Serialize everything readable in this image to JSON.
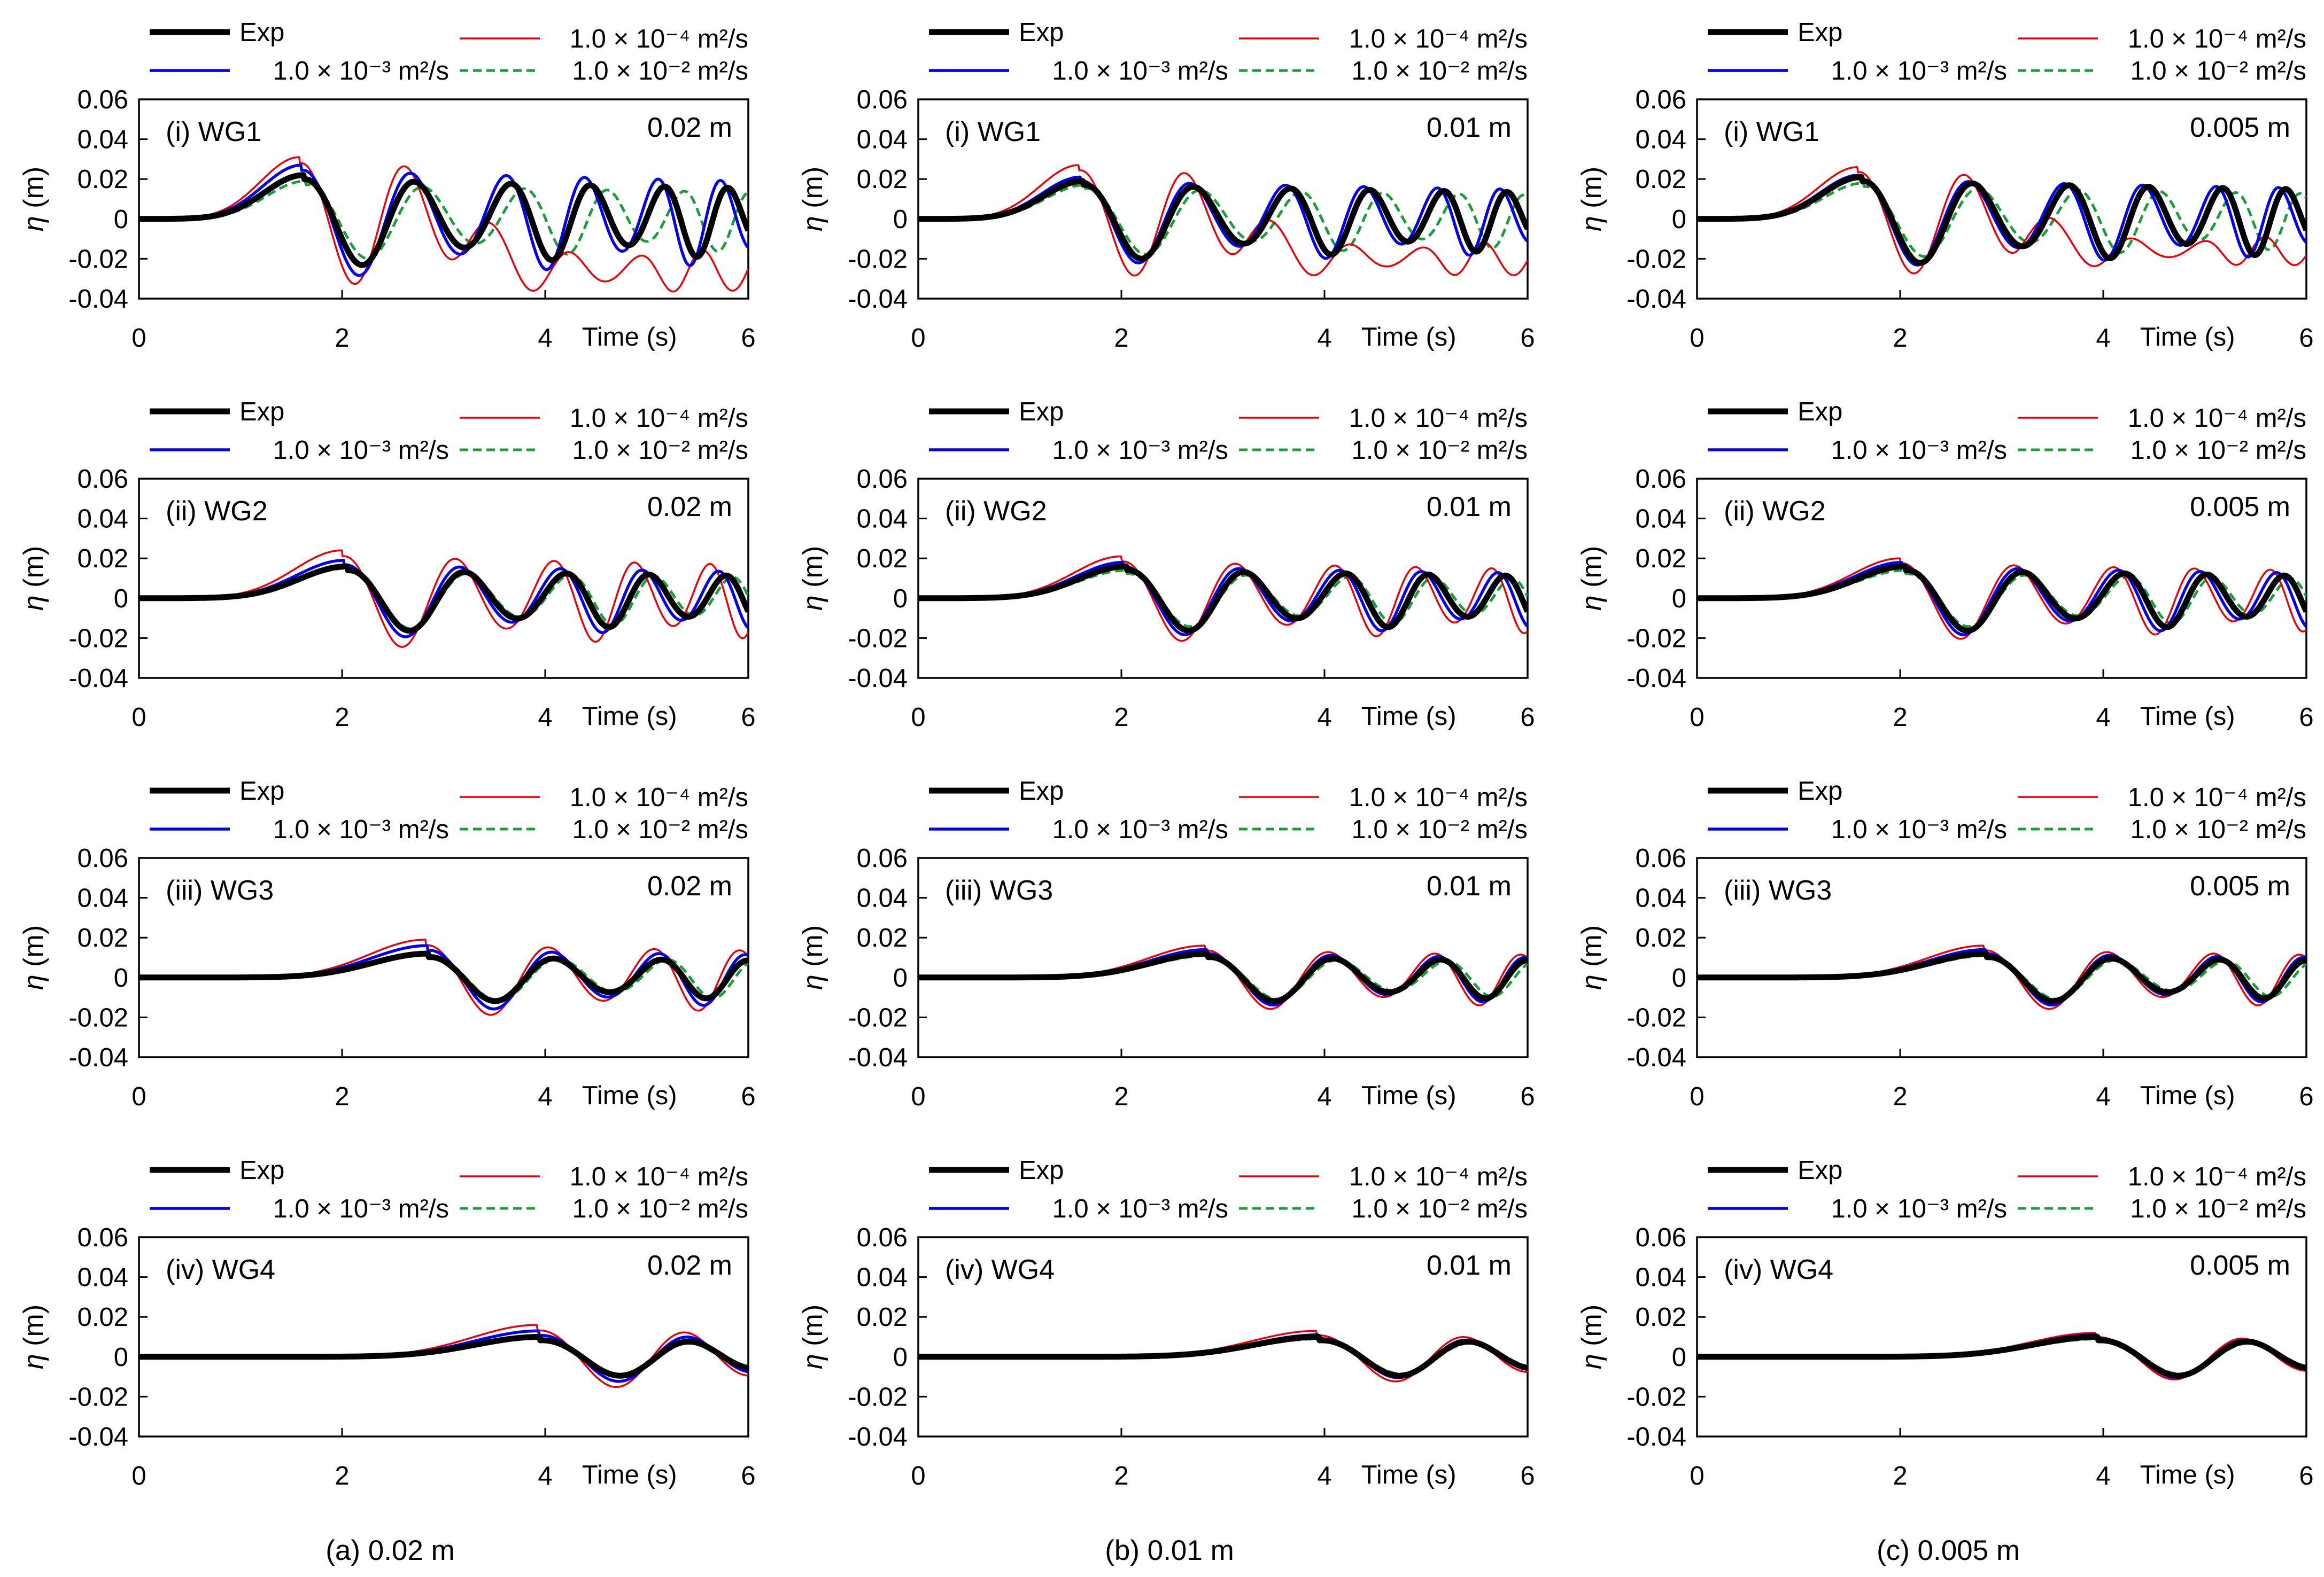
{
  "figure": {
    "column_captions": [
      "(a) 0.02 m",
      "(b) 0.01 m",
      "(c) 0.005 m"
    ],
    "row_titles": [
      "(i) WG1",
      "(ii) WG2",
      "(iii) WG3",
      "(iv) WG4"
    ],
    "corner_labels": [
      "0.02 m",
      "0.01 m",
      "0.005 m"
    ],
    "legend_labels": {
      "exp": "Exp",
      "nu1e4": "1.0 × 10⁻⁴ m²/s",
      "nu1e3": "1.0 × 10⁻³ m²/s",
      "nu1e2": "1.0 × 10⁻² m²/s"
    },
    "xlabel": "Time (s)",
    "ylabel_symbol": "η",
    "ylabel_unit": " (m)",
    "xticks": [
      "0",
      "2",
      "4",
      "6"
    ],
    "yticks": [
      "-0.04",
      "-0.02",
      "0",
      "0.02",
      "0.04",
      "0.06"
    ]
  },
  "colors": {
    "exp": "#000000",
    "nu1e4": "#e8000b",
    "nu1e3": "#0000ee",
    "nu1e2": "#1a9e3a"
  },
  "chart_data": [
    {
      "type": "line",
      "title": "(i) WG1",
      "corner_label": "0.02 m",
      "xlabel": "Time (s)",
      "ylabel": "η (m)",
      "xlim": [
        0,
        6
      ],
      "ylim": [
        -0.04,
        0.06
      ],
      "series": [
        {
          "name": "Exp",
          "gauge": 1,
          "t1": 1.62,
          "amp": 0.022,
          "T": 1.22,
          "tail": 0
        },
        {
          "name": "1.0 × 10⁻⁴ m²/s",
          "gauge": 1,
          "t1": 1.58,
          "amp": 0.031,
          "T": 1.15,
          "tail": -0.026
        },
        {
          "name": "1.0 × 10⁻³ m²/s",
          "gauge": 1,
          "t1": 1.6,
          "amp": 0.027,
          "T": 1.2,
          "tail": 0
        },
        {
          "name": "1.0 × 10⁻² m²/s",
          "gauge": 1,
          "t1": 1.64,
          "amp": 0.019,
          "T": 1.3,
          "tail": 0
        }
      ]
    },
    {
      "type": "line",
      "title": "(i) WG1",
      "corner_label": "0.01 m",
      "xlabel": "Time (s)",
      "ylabel": "η (m)",
      "xlim": [
        0,
        6
      ],
      "ylim": [
        -0.04,
        0.06
      ],
      "series": [
        {
          "name": "Exp",
          "gauge": 1,
          "t1": 1.62,
          "amp": 0.019,
          "T": 1.22,
          "tail": 0
        },
        {
          "name": "1.0 × 10⁻⁴ m²/s",
          "gauge": 1,
          "t1": 1.58,
          "amp": 0.027,
          "T": 1.16,
          "tail": -0.02
        },
        {
          "name": "1.0 × 10⁻³ m²/s",
          "gauge": 1,
          "t1": 1.6,
          "amp": 0.021,
          "T": 1.2,
          "tail": 0
        },
        {
          "name": "1.0 × 10⁻² m²/s",
          "gauge": 1,
          "t1": 1.64,
          "amp": 0.017,
          "T": 1.28,
          "tail": 0
        }
      ]
    },
    {
      "type": "line",
      "title": "(i) WG1",
      "corner_label": "0.005 m",
      "xlabel": "Time (s)",
      "ylabel": "η (m)",
      "xlim": [
        0,
        6
      ],
      "ylim": [
        -0.04,
        0.06
      ],
      "series": [
        {
          "name": "Exp",
          "gauge": 1,
          "t1": 1.62,
          "amp": 0.021,
          "T": 1.22,
          "tail": 0
        },
        {
          "name": "1.0 × 10⁻⁴ m²/s",
          "gauge": 1,
          "t1": 1.58,
          "amp": 0.026,
          "T": 1.17,
          "tail": -0.016
        },
        {
          "name": "1.0 × 10⁻³ m²/s",
          "gauge": 1,
          "t1": 1.6,
          "amp": 0.022,
          "T": 1.2,
          "tail": 0
        },
        {
          "name": "1.0 × 10⁻² m²/s",
          "gauge": 1,
          "t1": 1.64,
          "amp": 0.018,
          "T": 1.27,
          "tail": 0
        }
      ]
    },
    {
      "type": "line",
      "title": "(ii) WG2",
      "corner_label": "0.02 m",
      "xlabel": "Time (s)",
      "ylabel": "η (m)",
      "xlim": [
        0,
        6
      ],
      "ylim": [
        -0.04,
        0.06
      ],
      "series": [
        {
          "name": "Exp",
          "gauge": 2,
          "t1": 2.05,
          "amp": 0.016,
          "T": 1.3,
          "tail": 0
        },
        {
          "name": "1.0 × 10⁻⁴ m²/s",
          "gauge": 2,
          "t1": 2.0,
          "amp": 0.024,
          "T": 1.25,
          "tail": 0
        },
        {
          "name": "1.0 × 10⁻³ m²/s",
          "gauge": 2,
          "t1": 2.02,
          "amp": 0.019,
          "T": 1.28,
          "tail": 0
        },
        {
          "name": "1.0 × 10⁻² m²/s",
          "gauge": 2,
          "t1": 2.05,
          "amp": 0.015,
          "T": 1.33,
          "tail": 0
        }
      ]
    },
    {
      "type": "line",
      "title": "(ii) WG2",
      "corner_label": "0.01 m",
      "xlabel": "Time (s)",
      "ylabel": "η (m)",
      "xlim": [
        0,
        6
      ],
      "ylim": [
        -0.04,
        0.06
      ],
      "series": [
        {
          "name": "Exp",
          "gauge": 2,
          "t1": 2.05,
          "amp": 0.016,
          "T": 1.3,
          "tail": 0
        },
        {
          "name": "1.0 × 10⁻⁴ m²/s",
          "gauge": 2,
          "t1": 2.0,
          "amp": 0.021,
          "T": 1.26,
          "tail": 0
        },
        {
          "name": "1.0 × 10⁻³ m²/s",
          "gauge": 2,
          "t1": 2.02,
          "amp": 0.018,
          "T": 1.28,
          "tail": 0
        },
        {
          "name": "1.0 × 10⁻² m²/s",
          "gauge": 2,
          "t1": 2.05,
          "amp": 0.014,
          "T": 1.33,
          "tail": 0
        }
      ]
    },
    {
      "type": "line",
      "title": "(ii) WG2",
      "corner_label": "0.005 m",
      "xlabel": "Time (s)",
      "ylabel": "η (m)",
      "xlim": [
        0,
        6
      ],
      "ylim": [
        -0.04,
        0.06
      ],
      "series": [
        {
          "name": "Exp",
          "gauge": 2,
          "t1": 2.05,
          "amp": 0.016,
          "T": 1.3,
          "tail": 0
        },
        {
          "name": "1.0 × 10⁻⁴ m²/s",
          "gauge": 2,
          "t1": 2.0,
          "amp": 0.02,
          "T": 1.26,
          "tail": 0
        },
        {
          "name": "1.0 × 10⁻³ m²/s",
          "gauge": 2,
          "t1": 2.02,
          "amp": 0.018,
          "T": 1.28,
          "tail": 0
        },
        {
          "name": "1.0 × 10⁻² m²/s",
          "gauge": 2,
          "t1": 2.05,
          "amp": 0.014,
          "T": 1.33,
          "tail": 0
        }
      ]
    },
    {
      "type": "line",
      "title": "(iii) WG3",
      "corner_label": "0.02 m",
      "xlabel": "Time (s)",
      "ylabel": "η (m)",
      "xlim": [
        0,
        6
      ],
      "ylim": [
        -0.04,
        0.06
      ],
      "series": [
        {
          "name": "Exp",
          "gauge": 3,
          "t1": 2.85,
          "amp": 0.012,
          "T": 1.4,
          "tail": 0
        },
        {
          "name": "1.0 × 10⁻⁴ m²/s",
          "gauge": 3,
          "t1": 2.82,
          "amp": 0.019,
          "T": 1.37,
          "tail": 0
        },
        {
          "name": "1.0 × 10⁻³ m²/s",
          "gauge": 3,
          "t1": 2.84,
          "amp": 0.016,
          "T": 1.39,
          "tail": 0
        },
        {
          "name": "1.0 × 10⁻² m²/s",
          "gauge": 3,
          "t1": 2.87,
          "amp": 0.012,
          "T": 1.43,
          "tail": 0
        }
      ]
    },
    {
      "type": "line",
      "title": "(iii) WG3",
      "corner_label": "0.01 m",
      "xlabel": "Time (s)",
      "ylabel": "η (m)",
      "xlim": [
        0,
        6
      ],
      "ylim": [
        -0.04,
        0.06
      ],
      "series": [
        {
          "name": "Exp",
          "gauge": 3,
          "t1": 2.85,
          "amp": 0.012,
          "T": 1.4,
          "tail": 0
        },
        {
          "name": "1.0 × 10⁻⁴ m²/s",
          "gauge": 3,
          "t1": 2.82,
          "amp": 0.016,
          "T": 1.38,
          "tail": 0
        },
        {
          "name": "1.0 × 10⁻³ m²/s",
          "gauge": 3,
          "t1": 2.84,
          "amp": 0.014,
          "T": 1.39,
          "tail": 0
        },
        {
          "name": "1.0 × 10⁻² m²/s",
          "gauge": 3,
          "t1": 2.87,
          "amp": 0.011,
          "T": 1.43,
          "tail": 0
        }
      ]
    },
    {
      "type": "line",
      "title": "(iii) WG3",
      "corner_label": "0.005 m",
      "xlabel": "Time (s)",
      "ylabel": "η (m)",
      "xlim": [
        0,
        6
      ],
      "ylim": [
        -0.04,
        0.06
      ],
      "series": [
        {
          "name": "Exp",
          "gauge": 3,
          "t1": 2.85,
          "amp": 0.012,
          "T": 1.4,
          "tail": 0
        },
        {
          "name": "1.0 × 10⁻⁴ m²/s",
          "gauge": 3,
          "t1": 2.82,
          "amp": 0.016,
          "T": 1.38,
          "tail": 0
        },
        {
          "name": "1.0 × 10⁻³ m²/s",
          "gauge": 3,
          "t1": 2.84,
          "amp": 0.014,
          "T": 1.39,
          "tail": 0
        },
        {
          "name": "1.0 × 10⁻² m²/s",
          "gauge": 3,
          "t1": 2.87,
          "amp": 0.011,
          "T": 1.43,
          "tail": 0
        }
      ]
    },
    {
      "type": "line",
      "title": "(iv) WG4",
      "corner_label": "0.02 m",
      "xlabel": "Time (s)",
      "ylabel": "η (m)",
      "xlim": [
        0,
        6
      ],
      "ylim": [
        -0.04,
        0.06
      ],
      "series": [
        {
          "name": "Exp",
          "gauge": 4,
          "t1": 3.95,
          "amp": 0.01,
          "T": 1.7,
          "tail": 0
        },
        {
          "name": "1.0 × 10⁻⁴ m²/s",
          "gauge": 4,
          "t1": 3.92,
          "amp": 0.016,
          "T": 1.68,
          "tail": 0
        },
        {
          "name": "1.0 × 10⁻³ m²/s",
          "gauge": 4,
          "t1": 3.94,
          "amp": 0.013,
          "T": 1.69,
          "tail": 0
        },
        {
          "name": "1.0 × 10⁻² m²/s",
          "gauge": 4,
          "t1": 3.96,
          "amp": 0.01,
          "T": 1.72,
          "tail": 0
        }
      ]
    },
    {
      "type": "line",
      "title": "(iv) WG4",
      "corner_label": "0.01 m",
      "xlabel": "Time (s)",
      "ylabel": "η (m)",
      "xlim": [
        0,
        6
      ],
      "ylim": [
        -0.04,
        0.06
      ],
      "series": [
        {
          "name": "Exp",
          "gauge": 4,
          "t1": 3.95,
          "amp": 0.01,
          "T": 1.7,
          "tail": 0
        },
        {
          "name": "1.0 × 10⁻⁴ m²/s",
          "gauge": 4,
          "t1": 3.92,
          "amp": 0.013,
          "T": 1.68,
          "tail": 0
        },
        {
          "name": "1.0 × 10⁻³ m²/s",
          "gauge": 4,
          "t1": 3.94,
          "amp": 0.011,
          "T": 1.69,
          "tail": 0
        },
        {
          "name": "1.0 × 10⁻² m²/s",
          "gauge": 4,
          "t1": 3.96,
          "amp": 0.009,
          "T": 1.72,
          "tail": 0
        }
      ]
    },
    {
      "type": "line",
      "title": "(iv) WG4",
      "corner_label": "0.005 m",
      "xlabel": "Time (s)",
      "ylabel": "η (m)",
      "xlim": [
        0,
        6
      ],
      "ylim": [
        -0.04,
        0.06
      ],
      "series": [
        {
          "name": "Exp",
          "gauge": 4,
          "t1": 3.95,
          "amp": 0.01,
          "T": 1.7,
          "tail": 0
        },
        {
          "name": "1.0 × 10⁻⁴ m²/s",
          "gauge": 4,
          "t1": 3.92,
          "amp": 0.012,
          "T": 1.68,
          "tail": 0
        },
        {
          "name": "1.0 × 10⁻³ m²/s",
          "gauge": 4,
          "t1": 3.94,
          "amp": 0.011,
          "T": 1.69,
          "tail": 0
        },
        {
          "name": "1.0 × 10⁻² m²/s",
          "gauge": 4,
          "t1": 3.96,
          "amp": 0.009,
          "T": 1.72,
          "tail": 0
        }
      ]
    }
  ]
}
